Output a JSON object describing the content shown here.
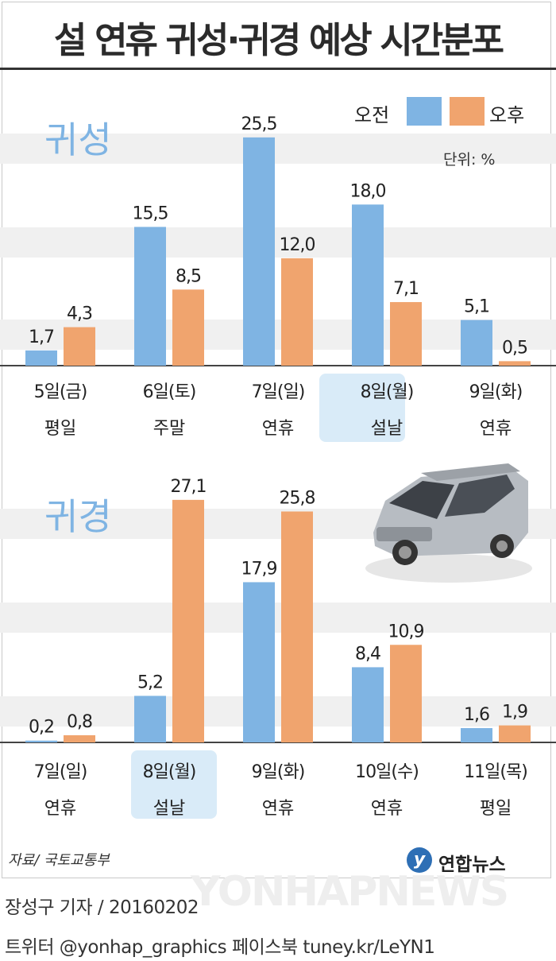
{
  "title": "설 연휴 귀성·귀경 예상 시간분포",
  "unit": "단위: %",
  "legend": {
    "am": "오전",
    "pm": "오후",
    "am_color": "#7fb4e3",
    "pm_color": "#f0a46e"
  },
  "source": "자료/ 국토교통부",
  "logo_text": "연합뉴스",
  "watermark": "YONHAPNEWS",
  "byline": "장성구 기자 / 20160202",
  "social": "트위터 @yonhap_graphics  페이스북 tuney.kr/LeYN1",
  "chart_data": [
    {
      "type": "bar",
      "label": "귀성",
      "categories": [
        "5일(금)",
        "6일(토)",
        "7일(일)",
        "8일(월)",
        "9일(화)"
      ],
      "sublabels": [
        "평일",
        "주말",
        "연휴",
        "설날",
        "연휴"
      ],
      "highlight_index": 3,
      "series": [
        {
          "name": "오전",
          "values": [
            1.7,
            15.5,
            25.5,
            18.0,
            5.1
          ]
        },
        {
          "name": "오후",
          "values": [
            4.3,
            8.5,
            12.0,
            7.1,
            0.5
          ]
        }
      ],
      "value_labels": [
        [
          "1,7",
          "15,5",
          "25,5",
          "18,0",
          "5,1"
        ],
        [
          "4,3",
          "8,5",
          "12,0",
          "7,1",
          "0,5"
        ]
      ]
    },
    {
      "type": "bar",
      "label": "귀경",
      "categories": [
        "7일(일)",
        "8일(월)",
        "9일(화)",
        "10일(수)",
        "11일(목)"
      ],
      "sublabels": [
        "연휴",
        "설날",
        "연휴",
        "연휴",
        "평일"
      ],
      "highlight_index": 1,
      "series": [
        {
          "name": "오전",
          "values": [
            0.2,
            5.2,
            17.9,
            8.4,
            1.6
          ]
        },
        {
          "name": "오후",
          "values": [
            0.8,
            27.1,
            25.8,
            10.9,
            1.9
          ]
        }
      ],
      "value_labels": [
        [
          "0,2",
          "5,2",
          "17,9",
          "8,4",
          "1,6"
        ],
        [
          "0,8",
          "27,1",
          "25,8",
          "10,9",
          "1,9"
        ]
      ]
    }
  ]
}
